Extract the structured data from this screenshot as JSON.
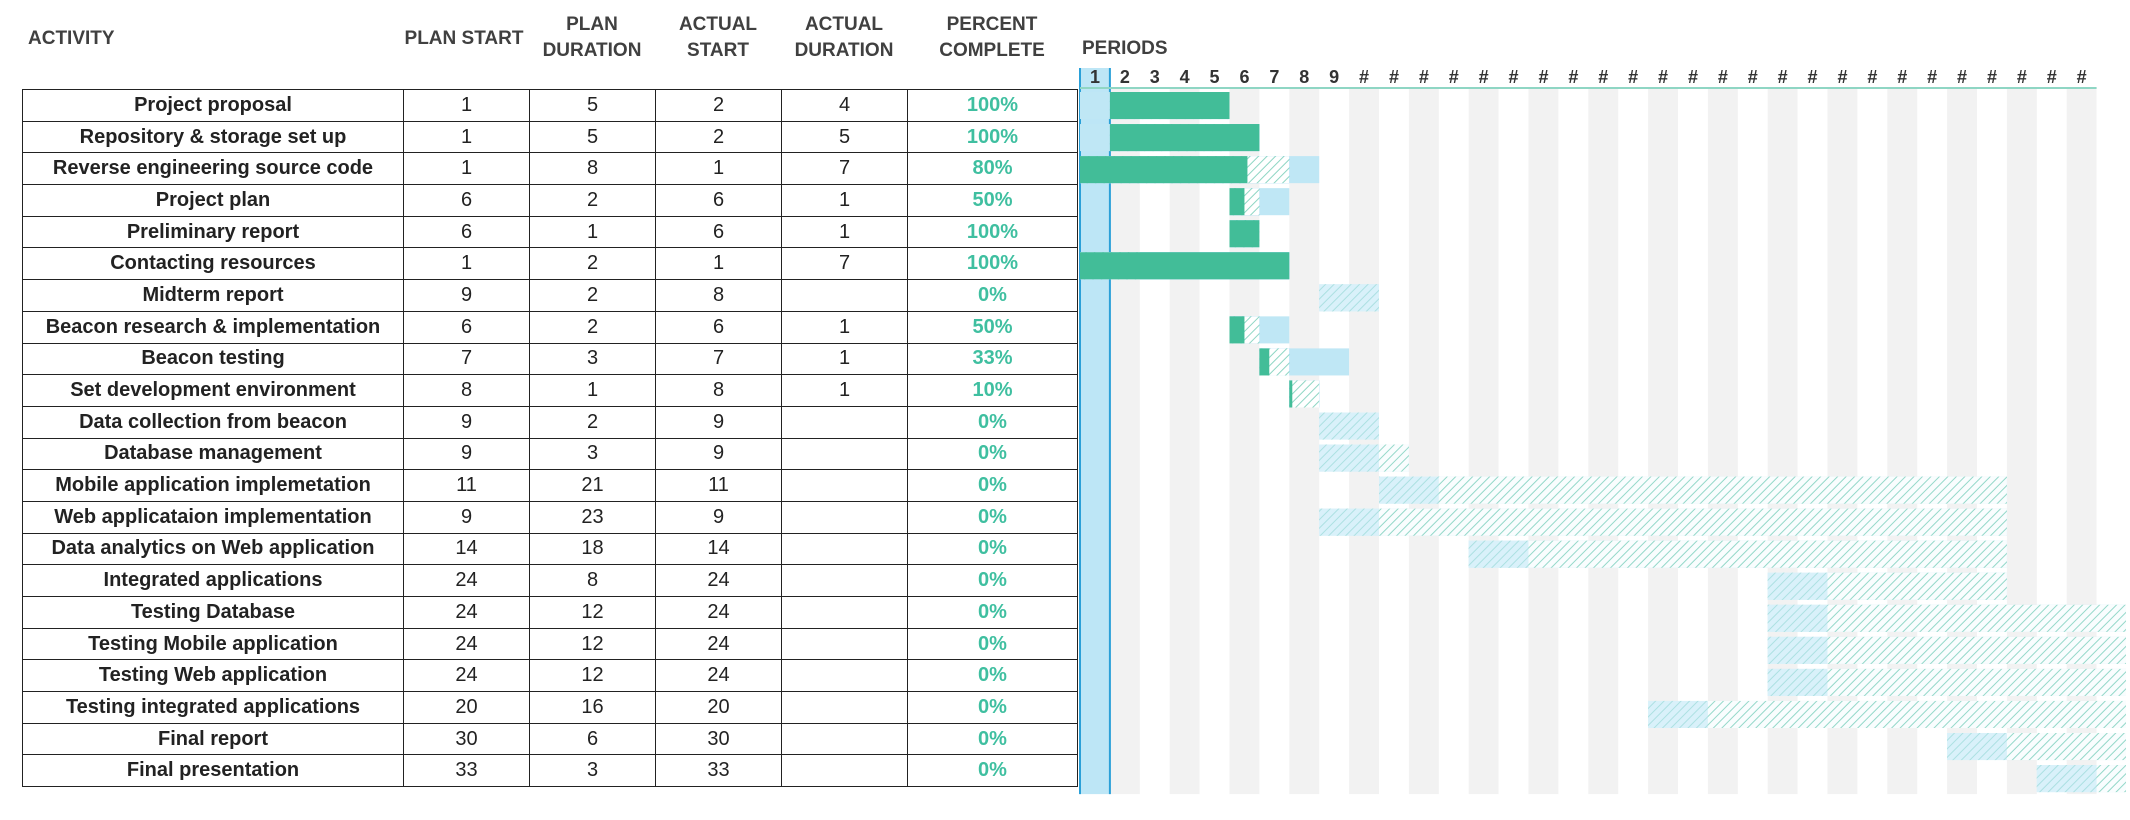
{
  "headers": {
    "activity": "ACTIVITY",
    "plan_start": "PLAN START",
    "plan_duration": "PLAN\nDURATION",
    "actual_start": "ACTUAL\nSTART",
    "actual_duration": "ACTUAL\nDURATION",
    "percent_complete": "PERCENT\nCOMPLETE",
    "periods": "PERIODS"
  },
  "period_labels": [
    "1",
    "2",
    "3",
    "4",
    "5",
    "6",
    "7",
    "8",
    "9",
    "#",
    "#",
    "#",
    "#",
    "#",
    "#",
    "#",
    "#",
    "#",
    "#",
    "#",
    "#",
    "#",
    "#",
    "#",
    "#",
    "#",
    "#",
    "#",
    "#",
    "#",
    "#",
    "#",
    "#",
    "#"
  ],
  "colors": {
    "plan": "#bfe7f5",
    "actual": "#4cc3a0",
    "complete": "#42bd98",
    "beyond": "#5bbcf2",
    "hatch_line": "#8fd6c4",
    "grid_band": "#f2f2f2",
    "period_highlight": "#bde6f6",
    "period_line": "#2aa0d8",
    "percent_text": "#3fbfa0"
  },
  "chart_data": {
    "type": "gantt",
    "title": "",
    "xlabel": "PERIODS",
    "period_range": [
      1,
      34
    ],
    "highlighted_period": 1,
    "tasks": [
      {
        "activity": "Project proposal",
        "plan_start": 1,
        "plan_duration": 5,
        "actual_start": 2,
        "actual_duration": 4,
        "percent_complete": "100%"
      },
      {
        "activity": "Repository & storage set up",
        "plan_start": 1,
        "plan_duration": 5,
        "actual_start": 2,
        "actual_duration": 5,
        "percent_complete": "100%"
      },
      {
        "activity": "Reverse engineering source code",
        "plan_start": 1,
        "plan_duration": 8,
        "actual_start": 1,
        "actual_duration": 7,
        "percent_complete": "80%"
      },
      {
        "activity": "Project plan",
        "plan_start": 6,
        "plan_duration": 2,
        "actual_start": 6,
        "actual_duration": 1,
        "percent_complete": "50%"
      },
      {
        "activity": "Preliminary report",
        "plan_start": 6,
        "plan_duration": 1,
        "actual_start": 6,
        "actual_duration": 1,
        "percent_complete": "100%"
      },
      {
        "activity": "Contacting resources",
        "plan_start": 1,
        "plan_duration": 2,
        "actual_start": 1,
        "actual_duration": 7,
        "percent_complete": "100%"
      },
      {
        "activity": "Midterm report",
        "plan_start": 9,
        "plan_duration": 2,
        "actual_start": 8,
        "actual_duration": null,
        "percent_complete": "0%"
      },
      {
        "activity": "Beacon research & implementation",
        "plan_start": 6,
        "plan_duration": 2,
        "actual_start": 6,
        "actual_duration": 1,
        "percent_complete": "50%"
      },
      {
        "activity": "Beacon testing",
        "plan_start": 7,
        "plan_duration": 3,
        "actual_start": 7,
        "actual_duration": 1,
        "percent_complete": "33%"
      },
      {
        "activity": "Set development environment",
        "plan_start": 8,
        "plan_duration": 1,
        "actual_start": 8,
        "actual_duration": 1,
        "percent_complete": "10%"
      },
      {
        "activity": "Data collection from beacon",
        "plan_start": 9,
        "plan_duration": 2,
        "actual_start": 9,
        "actual_duration": null,
        "percent_complete": "0%"
      },
      {
        "activity": "Database management",
        "plan_start": 9,
        "plan_duration": 3,
        "actual_start": 9,
        "actual_duration": null,
        "percent_complete": "0%"
      },
      {
        "activity": "Mobile application implemetation",
        "plan_start": 11,
        "plan_duration": 21,
        "actual_start": 11,
        "actual_duration": null,
        "percent_complete": "0%"
      },
      {
        "activity": "Web applicataion implementation",
        "plan_start": 9,
        "plan_duration": 23,
        "actual_start": 9,
        "actual_duration": null,
        "percent_complete": "0%"
      },
      {
        "activity": "Data analytics on Web application",
        "plan_start": 14,
        "plan_duration": 18,
        "actual_start": 14,
        "actual_duration": null,
        "percent_complete": "0%"
      },
      {
        "activity": "Integrated applications",
        "plan_start": 24,
        "plan_duration": 8,
        "actual_start": 24,
        "actual_duration": null,
        "percent_complete": "0%"
      },
      {
        "activity": "Testing Database",
        "plan_start": 24,
        "plan_duration": 12,
        "actual_start": 24,
        "actual_duration": null,
        "percent_complete": "0%"
      },
      {
        "activity": "Testing Mobile application",
        "plan_start": 24,
        "plan_duration": 12,
        "actual_start": 24,
        "actual_duration": null,
        "percent_complete": "0%"
      },
      {
        "activity": "Testing Web application",
        "plan_start": 24,
        "plan_duration": 12,
        "actual_start": 24,
        "actual_duration": null,
        "percent_complete": "0%"
      },
      {
        "activity": "Testing integrated applications",
        "plan_start": 20,
        "plan_duration": 16,
        "actual_start": 20,
        "actual_duration": null,
        "percent_complete": "0%"
      },
      {
        "activity": "Final report",
        "plan_start": 30,
        "plan_duration": 6,
        "actual_start": 30,
        "actual_duration": null,
        "percent_complete": "0%"
      },
      {
        "activity": "Final presentation",
        "plan_start": 33,
        "plan_duration": 3,
        "actual_start": 33,
        "actual_duration": null,
        "percent_complete": "0%"
      }
    ]
  }
}
